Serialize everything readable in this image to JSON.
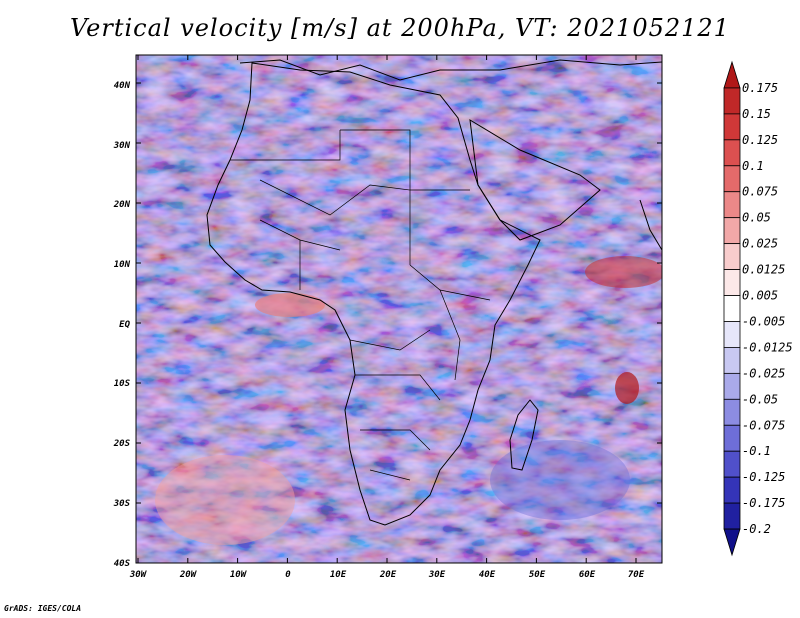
{
  "title": "Vertical velocity [m/s] at 200hPa, VT: 2021052121",
  "footer": "GrADS: IGES/COLA",
  "map": {
    "region": "Africa and surrounding oceans",
    "lon_range": [
      -30,
      75
    ],
    "lat_range": [
      -40,
      45
    ],
    "lat_ticks": [
      "40N",
      "30N",
      "20N",
      "10N",
      "EQ",
      "10S",
      "20S",
      "30S",
      "40S"
    ],
    "lon_ticks": [
      "30W",
      "20W",
      "10W",
      "0",
      "10E",
      "20E",
      "30E",
      "40E",
      "50E",
      "60E",
      "70E"
    ]
  },
  "colorbar": {
    "labels": [
      "0.175",
      "0.15",
      "0.125",
      "0.1",
      "0.075",
      "0.05",
      "0.025",
      "0.0125",
      "0.005",
      "-0.005",
      "-0.0125",
      "-0.025",
      "-0.05",
      "-0.075",
      "-0.1",
      "-0.125",
      "-0.175",
      "-0.2"
    ],
    "colors": [
      "#b01818",
      "#c02828",
      "#d03838",
      "#dc5050",
      "#e46a6a",
      "#ec8888",
      "#f2a8a8",
      "#f8cccc",
      "#fce8e8",
      "#ffffff",
      "#e6e6fa",
      "#c8c8f2",
      "#aaaaea",
      "#8c8ce2",
      "#6e6ed8",
      "#5050ca",
      "#3434b8",
      "#2020a0",
      "#10108a"
    ]
  }
}
